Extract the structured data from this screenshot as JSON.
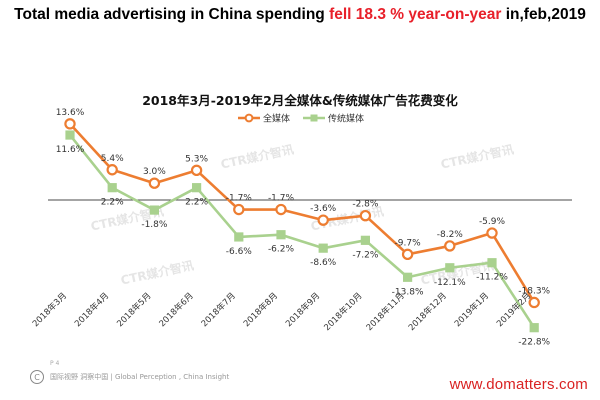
{
  "header": {
    "headline_pre": "Total media advertising in China spending ",
    "headline_highlight": "fell 18.3 % year-on-year",
    "headline_post": " in,feb,2019"
  },
  "footer": {
    "page_label": "P 4",
    "source": "国际视野 洞察中国 | Global Perception , China Insight",
    "website": "www.domatters.com"
  },
  "watermark_text": "CTR媒介智讯",
  "colors": {
    "headline_accent": "#e8202a",
    "website": "#d92222",
    "all_media": "#ed7d31",
    "traditional_media": "#a9d18e",
    "zero_line": "#4a4a4a"
  },
  "chart_data": {
    "type": "line",
    "title": "2018年3月-2019年2月全媒体&传统媒体广告花费变化",
    "xlabel": "",
    "ylabel": "",
    "legend_position": "top-center",
    "grid": false,
    "categories": [
      "2018年3月",
      "2018年4月",
      "2018年5月",
      "2018年6月",
      "2018年7月",
      "2018年8月",
      "2018年9月",
      "2018年10月",
      "2018年11月",
      "2018年12月",
      "2019年1月",
      "2019年2月"
    ],
    "series": [
      {
        "name": "全媒体",
        "values": [
          13.6,
          5.4,
          3.0,
          5.3,
          -1.7,
          -1.7,
          -3.6,
          -2.8,
          -9.7,
          -8.2,
          -5.9,
          -18.3
        ],
        "labels": [
          "13.6%",
          "5.4%",
          "3.0%",
          "5.3%",
          "-1.7%",
          "-1.7%",
          "-3.6%",
          "-2.8%",
          "-9.7%",
          "-8.2%",
          "-5.9%",
          "-18.3%"
        ]
      },
      {
        "name": "传统媒体",
        "values": [
          11.6,
          2.2,
          -1.8,
          2.2,
          -6.6,
          -6.2,
          -8.6,
          -7.2,
          -13.8,
          -12.1,
          -11.2,
          -22.8
        ],
        "labels": [
          "11.6%",
          "2.2%",
          "-1.8%",
          "2.2%",
          "-6.6%",
          "-6.2%",
          "-8.6%",
          "-7.2%",
          "-13.8%",
          "-12.1%",
          "-11.2%",
          "-22.8%"
        ]
      }
    ]
  }
}
